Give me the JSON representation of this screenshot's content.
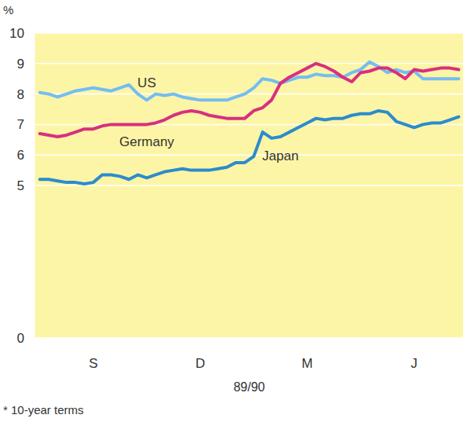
{
  "chart_data": {
    "type": "line",
    "y_label": "%",
    "x_label": "89/90",
    "footnote": "* 10-year terms",
    "categories": [
      null,
      null,
      null,
      null,
      null,
      null,
      "S",
      null,
      null,
      null,
      null,
      null,
      null,
      null,
      null,
      null,
      null,
      null,
      "D",
      null,
      null,
      null,
      null,
      null,
      null,
      null,
      null,
      null,
      null,
      null,
      "M",
      null,
      null,
      null,
      null,
      null,
      null,
      null,
      null,
      null,
      null,
      null,
      "J",
      null,
      null,
      null,
      null,
      null
    ],
    "series": [
      {
        "name": "US",
        "color": "#74bdf0",
        "values": [
          8.05,
          8.0,
          7.9,
          8.0,
          8.1,
          8.15,
          8.2,
          8.15,
          8.1,
          8.2,
          8.3,
          8.0,
          7.8,
          8.0,
          7.95,
          8.0,
          7.9,
          7.85,
          7.8,
          7.8,
          7.8,
          7.8,
          7.9,
          8.0,
          8.2,
          8.5,
          8.45,
          8.35,
          8.45,
          8.55,
          8.55,
          8.65,
          8.6,
          8.6,
          8.55,
          8.7,
          8.8,
          9.05,
          8.9,
          8.7,
          8.8,
          8.7,
          8.75,
          8.5,
          8.5,
          8.5,
          8.5,
          8.5
        ]
      },
      {
        "name": "Germany",
        "color": "#d8307e",
        "values": [
          6.7,
          6.65,
          6.6,
          6.65,
          6.75,
          6.85,
          6.85,
          6.95,
          7.0,
          7.0,
          7.0,
          7.0,
          7.0,
          7.05,
          7.15,
          7.3,
          7.4,
          7.45,
          7.4,
          7.3,
          7.25,
          7.2,
          7.2,
          7.2,
          7.45,
          7.55,
          7.8,
          8.35,
          8.55,
          8.7,
          8.85,
          9.0,
          8.9,
          8.75,
          8.55,
          8.4,
          8.7,
          8.75,
          8.85,
          8.85,
          8.7,
          8.5,
          8.8,
          8.75,
          8.8,
          8.85,
          8.85,
          8.8
        ]
      },
      {
        "name": "Japan",
        "color": "#2b8ccc",
        "values": [
          5.2,
          5.2,
          5.15,
          5.1,
          5.1,
          5.05,
          5.1,
          5.35,
          5.35,
          5.3,
          5.2,
          5.35,
          5.25,
          5.35,
          5.45,
          5.5,
          5.55,
          5.5,
          5.5,
          5.5,
          5.55,
          5.6,
          5.75,
          5.75,
          5.95,
          6.75,
          6.55,
          6.6,
          6.75,
          6.9,
          7.05,
          7.2,
          7.15,
          7.2,
          7.2,
          7.3,
          7.35,
          7.35,
          7.45,
          7.4,
          7.1,
          7.0,
          6.9,
          7.0,
          7.05,
          7.05,
          7.15,
          7.25
        ]
      }
    ],
    "ylim": [
      0,
      10
    ],
    "yticks": [
      0,
      5,
      6,
      7,
      8,
      9,
      10
    ],
    "grid": true
  }
}
